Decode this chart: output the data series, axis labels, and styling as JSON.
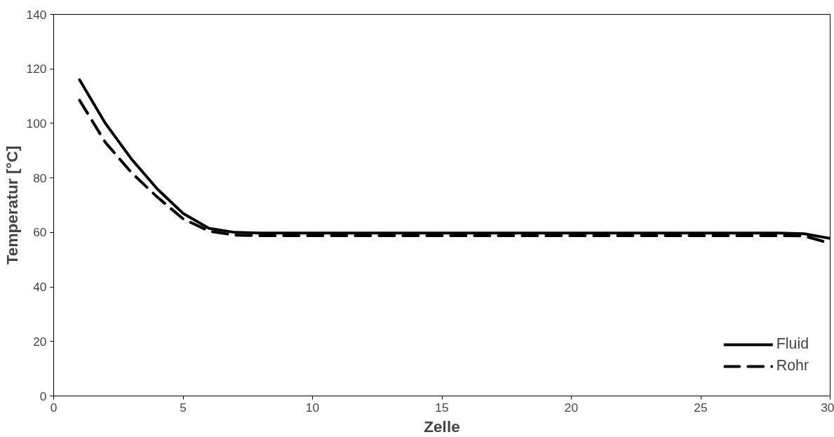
{
  "chart_data": {
    "type": "line",
    "xlabel": "Zelle",
    "ylabel": "Temperatur [°C]",
    "x": [
      1,
      2,
      3,
      4,
      5,
      6,
      7,
      8,
      9,
      10,
      11,
      12,
      13,
      14,
      15,
      16,
      17,
      18,
      19,
      20,
      21,
      22,
      23,
      24,
      25,
      26,
      27,
      28,
      29,
      30
    ],
    "series": [
      {
        "name": "Fluid",
        "color": "#000000",
        "line_style": "solid",
        "values": [
          116,
          100,
          87,
          76,
          67,
          61.5,
          60,
          59.8,
          59.8,
          59.8,
          59.8,
          59.8,
          59.8,
          59.8,
          59.8,
          59.8,
          59.8,
          59.8,
          59.8,
          59.8,
          59.8,
          59.8,
          59.8,
          59.8,
          59.8,
          59.8,
          59.8,
          59.8,
          59.5,
          57.8
        ]
      },
      {
        "name": "Rohr",
        "color": "#000000",
        "line_style": "dashed",
        "values": [
          108.5,
          93,
          82,
          73,
          65,
          60.5,
          59,
          58.8,
          58.8,
          58.8,
          58.8,
          58.8,
          58.8,
          58.8,
          58.8,
          58.8,
          58.8,
          58.8,
          58.8,
          58.8,
          58.8,
          58.8,
          58.8,
          58.8,
          58.8,
          58.8,
          58.8,
          58.8,
          58.7,
          56
        ]
      }
    ],
    "xlim": [
      0,
      30
    ],
    "xticks": [
      0,
      5,
      10,
      15,
      20,
      25,
      30
    ],
    "ylim": [
      0,
      140
    ],
    "yticks": [
      0,
      20,
      40,
      60,
      80,
      100,
      120,
      140
    ],
    "grid": false,
    "legend": "bottom right",
    "marker": "none"
  }
}
